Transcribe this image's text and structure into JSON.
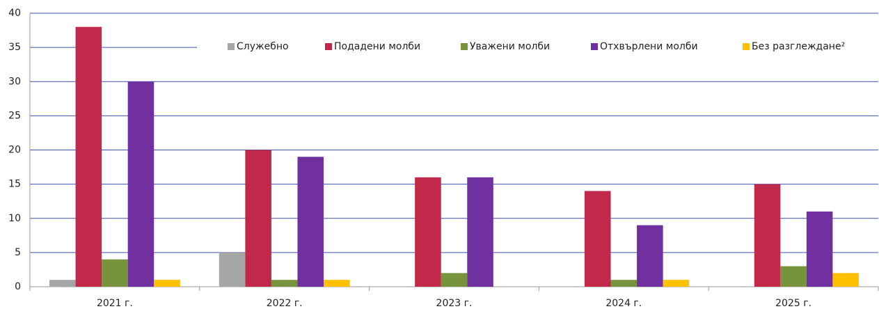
{
  "chart_data": {
    "type": "bar",
    "categories": [
      "2021 г.",
      "2022 г.",
      "2023 г.",
      "2024 г.",
      "2025 г."
    ],
    "series": [
      {
        "name": "Служебно",
        "color": "#a6a6a6",
        "values": [
          1,
          5,
          0,
          0,
          0
        ]
      },
      {
        "name": "Подадени молби",
        "color": "#c0294a",
        "values": [
          38,
          20,
          16,
          14,
          15
        ]
      },
      {
        "name": "Уважени молби",
        "color": "#77933c",
        "values": [
          4,
          1,
          2,
          1,
          3
        ]
      },
      {
        "name": "Отхвърлени молби",
        "color": "#7030a0",
        "values": [
          30,
          19,
          16,
          9,
          11
        ]
      },
      {
        "name": "Без разглеждане²",
        "color": "#ffc000",
        "values": [
          1,
          1,
          0,
          1,
          2
        ]
      }
    ],
    "ylim": [
      0,
      40
    ],
    "yticks": [
      0,
      5,
      10,
      15,
      20,
      25,
      30,
      35,
      40
    ],
    "grid": true,
    "legend": "top"
  }
}
